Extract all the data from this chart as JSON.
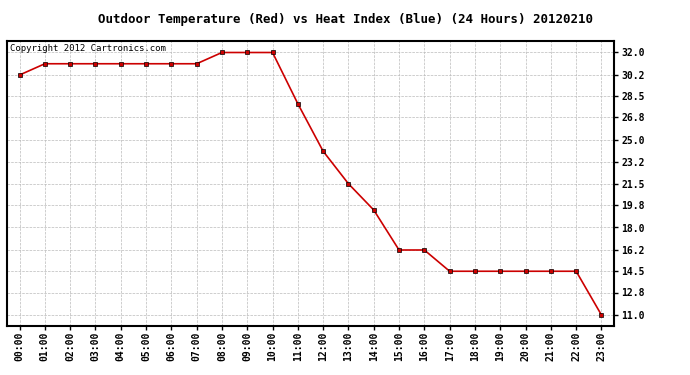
{
  "title": "Outdoor Temperature (Red) vs Heat Index (Blue) (24 Hours) 20120210",
  "copyright": "Copyright 2012 Cartronics.com",
  "x_labels": [
    "00:00",
    "01:00",
    "02:00",
    "03:00",
    "04:00",
    "05:00",
    "06:00",
    "07:00",
    "08:00",
    "09:00",
    "10:00",
    "11:00",
    "12:00",
    "13:00",
    "14:00",
    "15:00",
    "16:00",
    "17:00",
    "18:00",
    "19:00",
    "20:00",
    "21:00",
    "22:00",
    "23:00"
  ],
  "temp_values": [
    30.2,
    31.1,
    31.1,
    31.1,
    31.1,
    31.1,
    31.1,
    31.1,
    32.0,
    32.0,
    32.0,
    27.9,
    24.1,
    21.5,
    19.4,
    16.2,
    16.2,
    14.5,
    14.5,
    14.5,
    14.5,
    14.5,
    14.5,
    11.0
  ],
  "temp_color": "#cc0000",
  "heat_color": "#0000cc",
  "bg_color": "#ffffff",
  "plot_bg_color": "#ffffff",
  "grid_color": "#bbbbbb",
  "y_ticks": [
    11.0,
    12.8,
    14.5,
    16.2,
    18.0,
    19.8,
    21.5,
    23.2,
    25.0,
    26.8,
    28.5,
    30.2,
    32.0
  ],
  "y_min": 10.1,
  "y_max": 32.9,
  "title_fontsize": 9,
  "tick_fontsize": 7,
  "copyright_fontsize": 6.5
}
